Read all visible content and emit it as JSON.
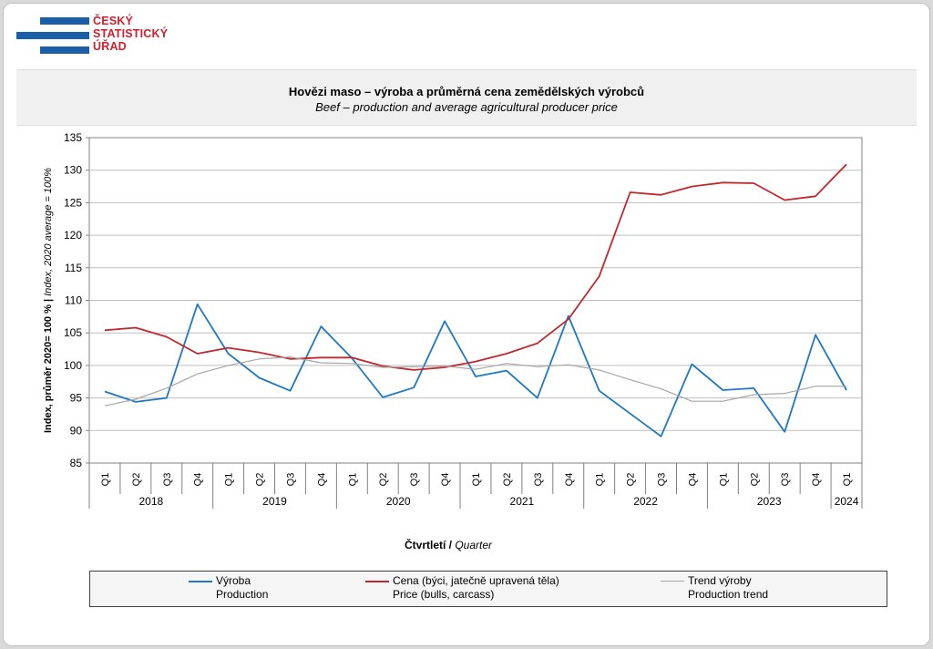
{
  "logo": {
    "lines": [
      "ČESKÝ",
      "STATISTICKÝ",
      "ÚŘAD"
    ],
    "colors": {
      "bars": "#1a5fa8",
      "text": "#d0202e"
    }
  },
  "chart_data": {
    "type": "line",
    "title": "Hovězi maso – výroba a průměrná cena zemědělských  výrobců",
    "subtitle": "Beef – production and average  agricultural producer price",
    "ylabel_cz": "Index, průměr 2020= 100 % |",
    "ylabel_en": " Index, 2020 average = 100%",
    "xlabel_cz": "Čtvrtletí /",
    "xlabel_en": " Quarter",
    "ylim": [
      85,
      135
    ],
    "yticks": [
      85,
      90,
      95,
      100,
      105,
      110,
      115,
      120,
      125,
      130,
      135
    ],
    "grid": true,
    "legend_position": "bottom",
    "categories": [
      "Q1",
      "Q2",
      "Q3",
      "Q4",
      "Q1",
      "Q2",
      "Q3",
      "Q4",
      "Q1",
      "Q2",
      "Q3",
      "Q4",
      "Q1",
      "Q2",
      "Q3",
      "Q4",
      "Q1",
      "Q2",
      "Q3",
      "Q4",
      "Q1",
      "Q2",
      "Q3",
      "Q4",
      "Q1"
    ],
    "years": [
      {
        "label": "2018",
        "quarters": 4
      },
      {
        "label": "2019",
        "quarters": 4
      },
      {
        "label": "2020",
        "quarters": 4
      },
      {
        "label": "2021",
        "quarters": 4
      },
      {
        "label": "2022",
        "quarters": 4
      },
      {
        "label": "2023",
        "quarters": 4
      },
      {
        "label": "2024",
        "quarters": 1
      }
    ],
    "series": [
      {
        "name": "Výroba",
        "name_en": "Production",
        "color": "#1f78c1",
        "values": [
          96.0,
          94.4,
          95.0,
          109.4,
          101.8,
          98.1,
          96.1,
          106.0,
          101.1,
          95.1,
          96.6,
          106.8,
          98.3,
          99.2,
          95.0,
          107.6,
          96.1,
          92.6,
          89.1,
          100.2,
          96.2,
          96.5,
          89.8,
          104.7,
          96.2
        ]
      },
      {
        "name": "Cena (býci, jatečně upravená těla)",
        "name_en": "Price (bulls, carcass)",
        "color": "#c0282d",
        "values": [
          105.4,
          105.8,
          104.4,
          101.8,
          102.7,
          102.0,
          101.0,
          101.2,
          101.2,
          99.9,
          99.3,
          99.7,
          100.6,
          101.8,
          103.4,
          107.1,
          113.7,
          126.6,
          126.2,
          127.5,
          128.1,
          128.0,
          125.4,
          126.0,
          130.9
        ]
      },
      {
        "name": "Trend výroby",
        "name_en": "Production trend",
        "color": "#a6a6a6",
        "values": [
          93.8,
          94.8,
          96.5,
          98.7,
          100.0,
          101.0,
          101.3,
          100.4,
          100.3,
          99.7,
          99.8,
          99.9,
          99.4,
          100.3,
          99.8,
          100.1,
          99.3,
          97.8,
          96.4,
          94.5,
          94.5,
          95.5,
          95.7,
          96.8,
          96.8
        ]
      }
    ]
  }
}
